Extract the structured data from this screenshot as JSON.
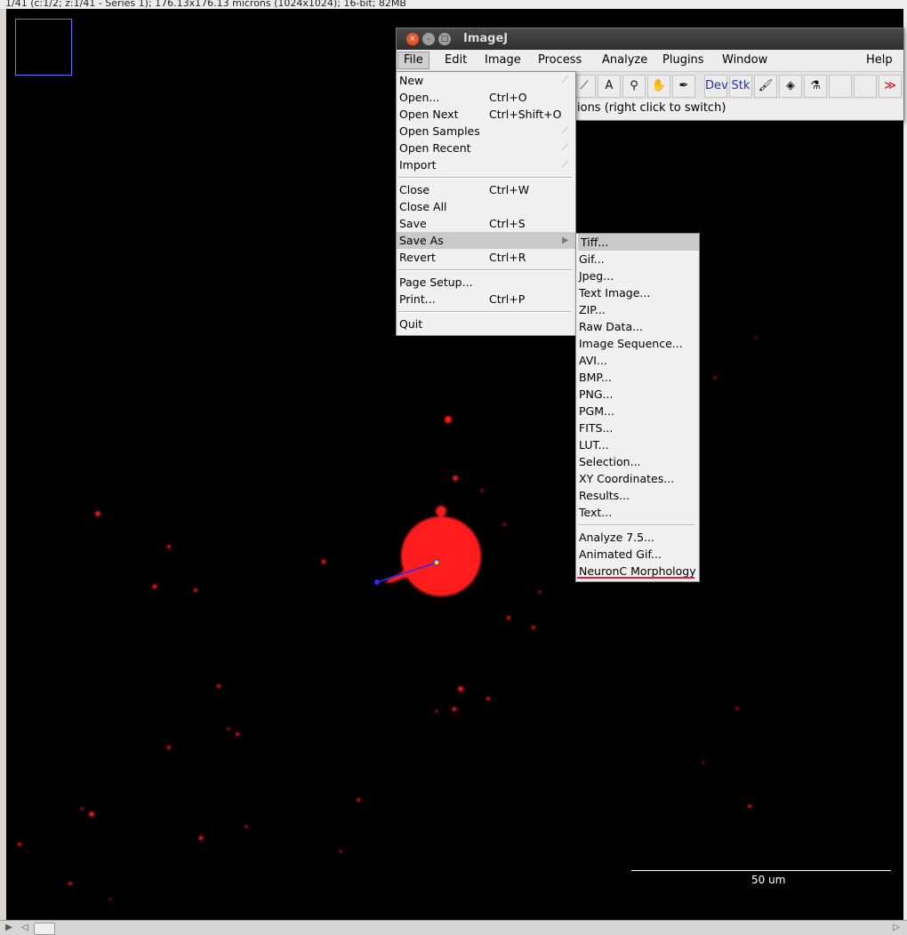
{
  "image_window": {
    "status_text": "1/41 (c:1/2; z:1/41 - Series 1); 176.13x176.13 microns (1024x1024); 16-bit; 82MB",
    "scale_bar_label": "50 um"
  },
  "imagej": {
    "title": "ImageJ",
    "menubar": [
      "File",
      "Edit",
      "Image",
      "Process",
      "Analyze",
      "Plugins",
      "Window",
      "Help"
    ],
    "toolbar": {
      "tools": [
        "wand-icon",
        "text-icon",
        "magnifier-icon",
        "hand-icon",
        "dropper-icon"
      ],
      "dev_label": "Dev",
      "stk_label": "Stk",
      "more_label": "≫"
    },
    "status_text": "ions (right click to switch)"
  },
  "file_menu": {
    "group1": [
      {
        "label": "New",
        "shortcut": "",
        "submenu": true
      },
      {
        "label": "Open...",
        "shortcut": "Ctrl+O",
        "submenu": false
      },
      {
        "label": "Open Next",
        "shortcut": "Ctrl+Shift+O",
        "submenu": false
      },
      {
        "label": "Open Samples",
        "shortcut": "",
        "submenu": true
      },
      {
        "label": "Open Recent",
        "shortcut": "",
        "submenu": true
      },
      {
        "label": "Import",
        "shortcut": "",
        "submenu": true
      }
    ],
    "group2": [
      {
        "label": "Close",
        "shortcut": "Ctrl+W"
      },
      {
        "label": "Close All",
        "shortcut": ""
      },
      {
        "label": "Save",
        "shortcut": "Ctrl+S"
      },
      {
        "label": "Save As",
        "shortcut": "",
        "submenu": true,
        "highlighted": true
      },
      {
        "label": "Revert",
        "shortcut": "Ctrl+R"
      }
    ],
    "group3": [
      {
        "label": "Page Setup...",
        "shortcut": ""
      },
      {
        "label": "Print...",
        "shortcut": "Ctrl+P"
      }
    ],
    "group4": [
      {
        "label": "Quit",
        "shortcut": ""
      }
    ]
  },
  "save_as_menu": {
    "group1": [
      "Tiff...",
      "Gif...",
      "Jpeg...",
      "Text Image...",
      "ZIP...",
      "Raw Data...",
      "Image Sequence...",
      "AVI...",
      "BMP...",
      "PNG...",
      "PGM...",
      "FITS...",
      "LUT...",
      "Selection...",
      "XY Coordinates...",
      "Results...",
      "Text..."
    ],
    "group2": [
      "Analyze 7.5...",
      "Animated Gif...",
      "NeuronC Morphology"
    ],
    "highlighted": "Tiff...",
    "underline_color": "#e0203a"
  },
  "colors": {
    "signal": "#ff1a1a",
    "selection_line": "#2a2aff",
    "navigator_border": "#6f6fff",
    "titlebar": "#3a3a3a"
  }
}
